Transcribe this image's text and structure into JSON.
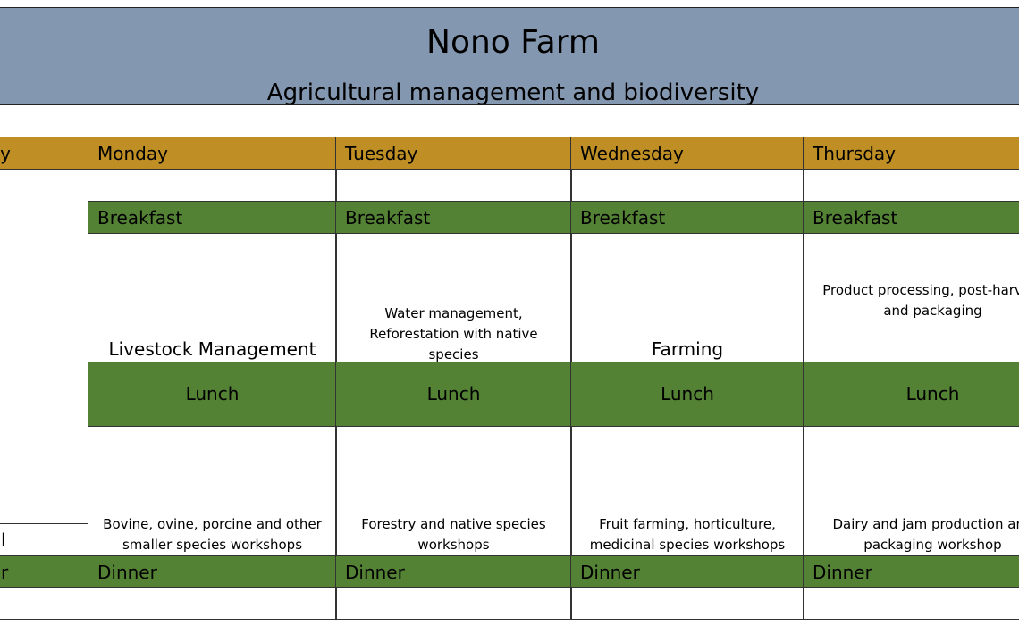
{
  "header": {
    "title": "Nono Farm",
    "subtitle": "Agricultural management and biodiversity"
  },
  "colors": {
    "banner": "#8497b0",
    "day_row": "#bf8f26",
    "meal_row": "#548235"
  },
  "left_column": {
    "day_fragment": "y",
    "row_fragment": "l",
    "dinner_fragment": "r"
  },
  "days": [
    {
      "name": "Monday",
      "breakfast": "Breakfast",
      "morning": "Livestock Management",
      "lunch": "Lunch",
      "afternoon": "Bovine, ovine, porcine and other smaller species workshops",
      "dinner": "Dinner"
    },
    {
      "name": "Tuesday",
      "breakfast": "Breakfast",
      "morning": "Water management, Reforestation with native species",
      "lunch": "Lunch",
      "afternoon": "Forestry and native species workshops",
      "dinner": "Dinner"
    },
    {
      "name": "Wednesday",
      "breakfast": "Breakfast",
      "morning": "Farming",
      "lunch": "Lunch",
      "afternoon": "Fruit farming, horticulture, medicinal species workshops",
      "dinner": "Dinner"
    },
    {
      "name": "Thursday",
      "breakfast": "Breakfast",
      "morning": "Product processing, post-harvest and packaging",
      "lunch": "Lunch",
      "afternoon": "Dairy and jam production and packaging workshop",
      "dinner": "Dinner"
    }
  ]
}
